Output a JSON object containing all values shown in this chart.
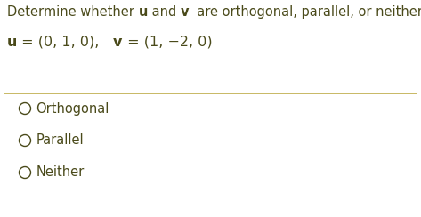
{
  "options": [
    "Orthogonal",
    "Parallel",
    "Neither"
  ],
  "bg_color": "#ffffff",
  "text_color": "#4a4a1a",
  "line_color": "#c8b864",
  "circle_color": "#4a4a1a",
  "font_size_title": 10.5,
  "font_size_eq": 11.5,
  "font_size_options": 10.5,
  "title_parts": [
    {
      "text": "Determine whether ",
      "bold": false
    },
    {
      "text": "u",
      "bold": true
    },
    {
      "text": " and ",
      "bold": false
    },
    {
      "text": "v",
      "bold": true
    },
    {
      "text": "  are orthogonal, parallel, or neither.",
      "bold": false
    }
  ],
  "eq_parts": [
    {
      "text": "u",
      "bold": true
    },
    {
      "text": " = (0, 1, 0),   ",
      "bold": false
    },
    {
      "text": "v",
      "bold": true
    },
    {
      "text": " = (1, −2, 0)",
      "bold": false
    }
  ]
}
